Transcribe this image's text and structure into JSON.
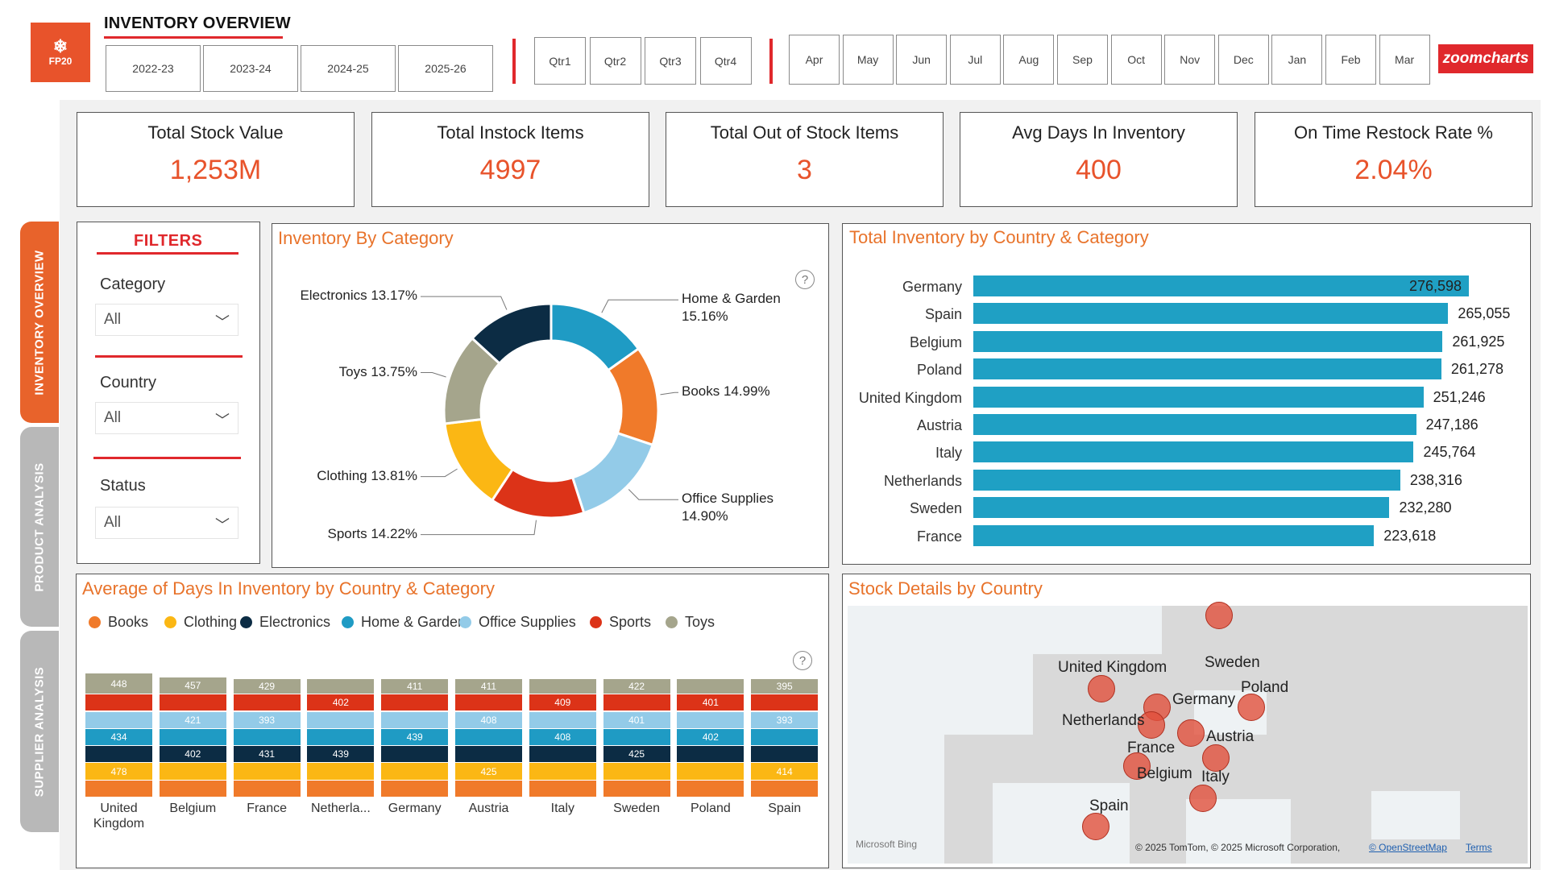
{
  "header": {
    "logo_text": "FP20",
    "title": "INVENTORY OVERVIEW",
    "years": [
      "2022-23",
      "2023-24",
      "2024-25",
      "2025-26"
    ],
    "quarters": [
      "Qtr1",
      "Qtr2",
      "Qtr3",
      "Qtr4"
    ],
    "months": [
      "Apr",
      "May",
      "Jun",
      "Jul",
      "Aug",
      "Sep",
      "Oct",
      "Nov",
      "Dec",
      "Jan",
      "Feb",
      "Mar"
    ],
    "brand_badge": "zoomcharts"
  },
  "nav": {
    "tabs": [
      {
        "label": "INVENTORY OVERVIEW",
        "active": true
      },
      {
        "label": "PRODUCT ANALYSIS",
        "active": false
      },
      {
        "label": "SUPPLIER ANALYSIS",
        "active": false
      }
    ]
  },
  "kpis": [
    {
      "label": "Total Stock Value",
      "value": "1,253M"
    },
    {
      "label": "Total Instock Items",
      "value": "4997"
    },
    {
      "label": "Total Out of Stock Items",
      "value": "3"
    },
    {
      "label": "Avg Days In Inventory",
      "value": "400"
    },
    {
      "label": "On Time Restock Rate %",
      "value": "2.04%"
    }
  ],
  "filters": {
    "title": "FILTERS",
    "items": [
      {
        "label": "Category",
        "value": "All"
      },
      {
        "label": "Country",
        "value": "All"
      },
      {
        "label": "Status",
        "value": "All"
      }
    ]
  },
  "colors": {
    "accent": "#e8532b",
    "title_orange": "#e8732b",
    "red": "#e0282c",
    "bar_blue": "#1fa0c4"
  },
  "donut": {
    "title": "Inventory By Category",
    "help": "?",
    "slices": [
      {
        "name": "Home & Garden",
        "pct": 15.16,
        "label": "Home & Garden",
        "label2": "15.16%",
        "color": "#1f9bc4"
      },
      {
        "name": "Books",
        "pct": 14.99,
        "label": "Books 14.99%",
        "color": "#f07a2a"
      },
      {
        "name": "Office Supplies",
        "pct": 14.9,
        "label": "Office Supplies",
        "label2": "14.90%",
        "color": "#93cbe8"
      },
      {
        "name": "Sports",
        "pct": 14.22,
        "label": "Sports 14.22%",
        "color": "#dc3318"
      },
      {
        "name": "Clothing",
        "pct": 13.81,
        "label": "Clothing 13.81%",
        "color": "#fbb714"
      },
      {
        "name": "Toys",
        "pct": 13.75,
        "label": "Toys 13.75%",
        "color": "#a5a58c"
      },
      {
        "name": "Electronics",
        "pct": 13.17,
        "label": "Electronics 13.17%",
        "color": "#0c2c44"
      }
    ]
  },
  "country_bars": {
    "title": "Total Inventory by Country & Category",
    "rows": [
      {
        "country": "Germany",
        "value": 276598,
        "label": "276,598"
      },
      {
        "country": "Spain",
        "value": 265055,
        "label": "265,055"
      },
      {
        "country": "Belgium",
        "value": 261925,
        "label": "261,925"
      },
      {
        "country": "Poland",
        "value": 261278,
        "label": "261,278"
      },
      {
        "country": "United Kingdom",
        "value": 251246,
        "label": "251,246"
      },
      {
        "country": "Austria",
        "value": 247186,
        "label": "247,186"
      },
      {
        "country": "Italy",
        "value": 245764,
        "label": "245,764"
      },
      {
        "country": "Netherlands",
        "value": 238316,
        "label": "238,316"
      },
      {
        "country": "Sweden",
        "value": 232280,
        "label": "232,280"
      },
      {
        "country": "France",
        "value": 223618,
        "label": "223,618"
      }
    ]
  },
  "stacked": {
    "title": "Average of Days In Inventory by Country & Category",
    "help": "?",
    "legend": [
      {
        "name": "Books",
        "color": "#f07a2a"
      },
      {
        "name": "Clothing",
        "color": "#fbb714"
      },
      {
        "name": "Electronics",
        "color": "#0c2c44"
      },
      {
        "name": "Home & Garden",
        "color": "#1f9bc4"
      },
      {
        "name": "Office Supplies",
        "color": "#93cbe8"
      },
      {
        "name": "Sports",
        "color": "#dc3318"
      },
      {
        "name": "Toys",
        "color": "#a5a58c"
      }
    ],
    "countries": [
      {
        "name": "United Kingdom",
        "display": [
          "United",
          "Kingdom"
        ],
        "labels": {
          "Clothing": "478",
          "Home & Garden": "434",
          "Toys": "448"
        }
      },
      {
        "name": "Belgium",
        "display": [
          "Belgium"
        ],
        "labels": {
          "Electronics": "402",
          "Office Supplies": "421",
          "Toys": "457"
        }
      },
      {
        "name": "France",
        "display": [
          "France"
        ],
        "labels": {
          "Electronics": "431",
          "Office Supplies": "393",
          "Toys": "429"
        }
      },
      {
        "name": "Netherlands",
        "display": [
          "Netherla..."
        ],
        "labels": {
          "Electronics": "439",
          "Sports": "402"
        }
      },
      {
        "name": "Germany",
        "display": [
          "Germany"
        ],
        "labels": {
          "Home & Garden": "439",
          "Toys": "411"
        }
      },
      {
        "name": "Austria",
        "display": [
          "Austria"
        ],
        "labels": {
          "Clothing": "425",
          "Office Supplies": "408",
          "Toys": "411"
        }
      },
      {
        "name": "Italy",
        "display": [
          "Italy"
        ],
        "labels": {
          "Home & Garden": "408",
          "Sports": "409"
        }
      },
      {
        "name": "Sweden",
        "display": [
          "Sweden"
        ],
        "labels": {
          "Electronics": "425",
          "Office Supplies": "401",
          "Toys": "422"
        }
      },
      {
        "name": "Poland",
        "display": [
          "Poland"
        ],
        "labels": {
          "Home & Garden": "402",
          "Sports": "401"
        }
      },
      {
        "name": "Spain",
        "display": [
          "Spain"
        ],
        "labels": {
          "Clothing": "414",
          "Office Supplies": "393",
          "Toys": "395"
        }
      }
    ]
  },
  "map": {
    "title": "Stock Details by Country",
    "labels": [
      "United Kingdom",
      "Sweden",
      "Poland",
      "Germany",
      "Netherlands",
      "Austria",
      "France",
      "Belgium",
      "Italy",
      "Spain"
    ],
    "bing": "Microsoft Bing",
    "attribution": "© 2025 TomTom, © 2025 Microsoft Corporation,",
    "osm_link": "© OpenStreetMap",
    "terms_link": "Terms"
  }
}
